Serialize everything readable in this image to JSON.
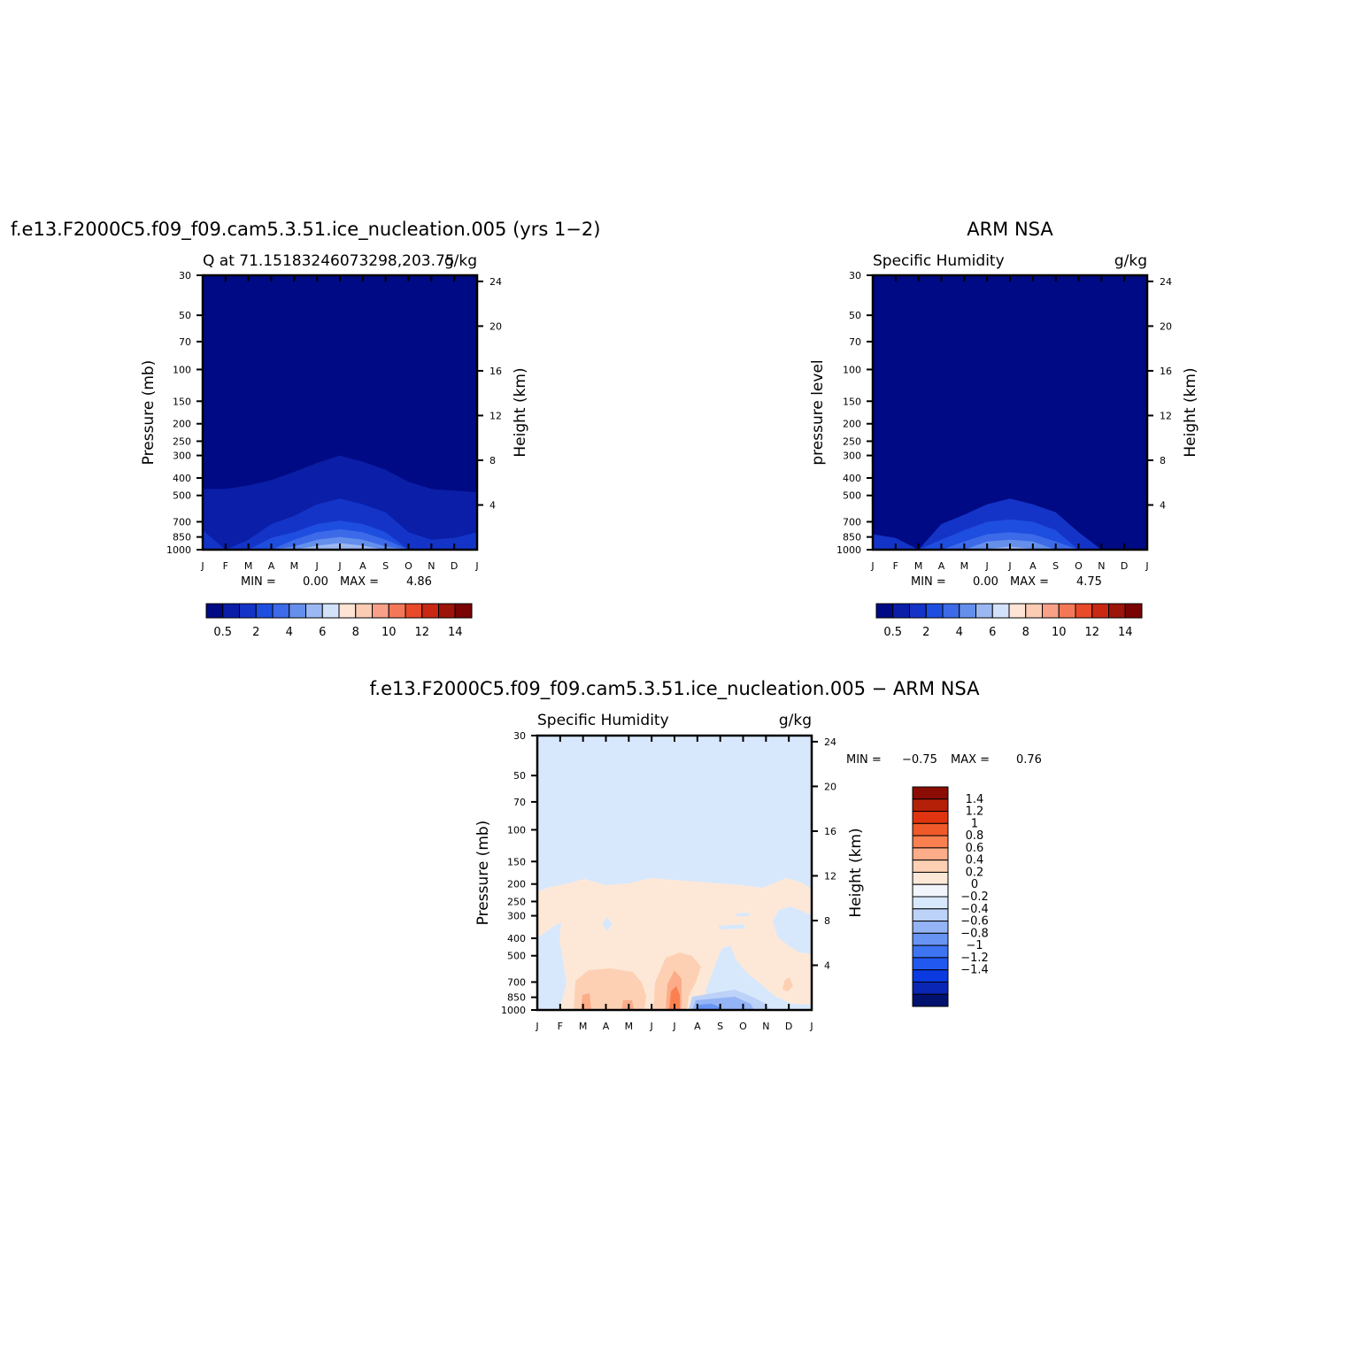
{
  "figure": {
    "top_left_title": "f.e13.F2000C5.f09_f09.cam5.3.51.ice_nucleation.005 (yrs 1−2)",
    "top_right_title": "ARM NSA",
    "bottom_title": "f.e13.F2000C5.f09_f09.cam5.3.51.ice_nucleation.005 − ARM NSA"
  },
  "colors": {
    "abs_levels": [
      "#000a84",
      "#0a1ea8",
      "#1434c8",
      "#1e4ee0",
      "#3c6ae8",
      "#6490ec",
      "#9cb8f2",
      "#d2e2fa",
      "#fde4d4",
      "#fccbb4",
      "#f8a088",
      "#f47858",
      "#e84a2a",
      "#c82814",
      "#9c140a",
      "#7a0404"
    ],
    "diff_levels": [
      "#00126e",
      "#0a26b4",
      "#0a3ae0",
      "#2058f0",
      "#3c74f2",
      "#6894f4",
      "#94b4f6",
      "#bcd2f8",
      "#d8e8fc",
      "#f2f6fc",
      "#fde8d8",
      "#fdd0b4",
      "#fcac88",
      "#fa8050",
      "#f05a2a",
      "#e03410",
      "#b42008",
      "#8a0c04"
    ]
  },
  "chart_data": [
    {
      "type": "heatmap",
      "id": "model",
      "title": "f.e13.F2000C5.f09_f09.cam5.3.51.ice_nucleation.005 (yrs 1−2)",
      "left_string": "Q at 71.15183246073298,203.75",
      "right_string": "g/kg",
      "ylabel": "Pressure (mb)",
      "ylabel_right": "Height (km)",
      "x_ticks": [
        "J",
        "F",
        "M",
        "A",
        "M",
        "J",
        "J",
        "A",
        "S",
        "O",
        "N",
        "D",
        "J"
      ],
      "y_ticks": [
        30,
        50,
        70,
        100,
        150,
        200,
        250,
        300,
        400,
        500,
        700,
        850,
        1000
      ],
      "y_right_ticks": [
        24,
        20,
        16,
        12,
        8,
        4
      ],
      "ylim": [
        1000,
        30
      ],
      "log_y": true,
      "min_text": "MIN =",
      "min_value": "0.00",
      "max_text": "MAX =",
      "max_value": "4.86",
      "colorbar_labels": [
        "0.5",
        "2",
        "4",
        "6",
        "8",
        "10",
        "12",
        "14"
      ],
      "contours_hpa": [
        [
          460,
          460,
          440,
          410,
          370,
          330,
          300,
          325,
          360,
          420,
          460,
          470,
          480
        ],
        [
          780,
          1000,
          880,
          720,
          650,
          560,
          520,
          560,
          620,
          800,
          880,
          860,
          800
        ],
        [
          1000,
          1000,
          1000,
          860,
          800,
          720,
          690,
          720,
          800,
          1000,
          1000,
          1000,
          1000
        ],
        [
          1000,
          1000,
          1000,
          1000,
          880,
          800,
          770,
          800,
          880,
          1000,
          1000,
          1000,
          1000
        ],
        [
          1000,
          1000,
          1000,
          1000,
          960,
          880,
          850,
          880,
          960,
          1000,
          1000,
          1000,
          1000
        ],
        [
          1000,
          1000,
          1000,
          1000,
          1000,
          950,
          920,
          950,
          1000,
          1000,
          1000,
          1000,
          1000
        ]
      ]
    },
    {
      "type": "heatmap",
      "id": "obs",
      "title": "ARM NSA",
      "left_string": "Specific Humidity",
      "right_string": "g/kg",
      "ylabel": "pressure level",
      "ylabel_right": "Height (km)",
      "x_ticks": [
        "J",
        "F",
        "M",
        "A",
        "M",
        "J",
        "J",
        "A",
        "S",
        "O",
        "N",
        "D",
        "J"
      ],
      "y_ticks": [
        30,
        50,
        70,
        100,
        150,
        200,
        250,
        300,
        400,
        500,
        700,
        850,
        1000
      ],
      "y_right_ticks": [
        24,
        20,
        16,
        12,
        8,
        4
      ],
      "ylim": [
        1000,
        30
      ],
      "log_y": true,
      "min_text": "MIN =",
      "min_value": "0.00",
      "max_text": "MAX =",
      "max_value": "4.75",
      "colorbar_labels": [
        "0.5",
        "2",
        "4",
        "6",
        "8",
        "10",
        "12",
        "14"
      ],
      "contours_hpa": [
        [
          1000,
          1000,
          1000,
          1000,
          1000,
          1000,
          1000,
          1000,
          1000,
          1000,
          1000,
          1000,
          1000
        ],
        [
          820,
          860,
          1000,
          720,
          640,
          560,
          520,
          560,
          620,
          800,
          1000,
          1000,
          1000
        ],
        [
          1000,
          1000,
          1000,
          880,
          780,
          700,
          680,
          700,
          780,
          1000,
          1000,
          1000,
          1000
        ],
        [
          1000,
          1000,
          1000,
          1000,
          900,
          820,
          800,
          820,
          900,
          1000,
          1000,
          1000,
          1000
        ],
        [
          1000,
          1000,
          1000,
          1000,
          1000,
          900,
          880,
          900,
          1000,
          1000,
          1000,
          1000,
          1000
        ],
        [
          1000,
          1000,
          1000,
          1000,
          1000,
          990,
          960,
          990,
          1000,
          1000,
          1000,
          1000,
          1000
        ]
      ]
    },
    {
      "type": "heatmap",
      "id": "diff",
      "title": "f.e13.F2000C5.f09_f09.cam5.3.51.ice_nucleation.005 − ARM NSA",
      "left_string": "Specific Humidity",
      "right_string": "g/kg",
      "ylabel": "Pressure (mb)",
      "ylabel_right": "Height (km)",
      "x_ticks": [
        "J",
        "F",
        "M",
        "A",
        "M",
        "J",
        "J",
        "A",
        "S",
        "O",
        "N",
        "D",
        "J"
      ],
      "y_ticks": [
        30,
        50,
        70,
        100,
        150,
        200,
        250,
        300,
        400,
        500,
        700,
        850,
        1000
      ],
      "y_right_ticks": [
        24,
        20,
        16,
        12,
        8,
        4
      ],
      "ylim": [
        1000,
        30
      ],
      "log_y": true,
      "min_text": "MIN =",
      "min_value": "−0.75",
      "max_text": "MAX =",
      "max_value": "0.76",
      "colorbar_labels": [
        "1.4",
        "1.2",
        "1",
        "0.8",
        "0.6",
        "0.4",
        "0.2",
        "0",
        "−0.2",
        "−0.4",
        "−0.6",
        "−0.8",
        "−1",
        "−1.2",
        "−1.4"
      ],
      "boundary_0_to_0.2_hpa": [
        210,
        205,
        195,
        185,
        200,
        190,
        180,
        185,
        190,
        195,
        200,
        180,
        210
      ]
    }
  ]
}
